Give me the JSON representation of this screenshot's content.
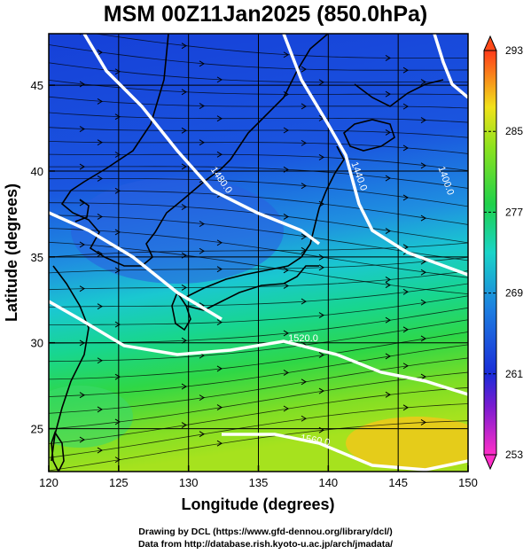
{
  "title": "MSM 00Z11Jan2025 (850.0hPa)",
  "map": {
    "lon_range": [
      120,
      150
    ],
    "lat_range": [
      22.5,
      48
    ],
    "x_ticks": [
      120,
      125,
      130,
      135,
      140,
      145,
      150
    ],
    "y_ticks": [
      25,
      30,
      35,
      40,
      45
    ],
    "xlabel": "Longitude (degrees)",
    "ylabel": "Latitude  (degrees)"
  },
  "colorbar": {
    "ticks": [
      253,
      261,
      269,
      277,
      285,
      293
    ],
    "min": 253,
    "max": 293
  },
  "contours": [
    {
      "label": "1480.0"
    },
    {
      "label": "1440.0"
    },
    {
      "label": "1400.0"
    },
    {
      "label": "1520.0"
    },
    {
      "label": "1560.0"
    }
  ],
  "credits": {
    "line1": "Drawing by DCL (https://www.gfd-dennou.org/library/dcl/)",
    "line2": "Data from http://database.rish.kyoto-u.ac.jp/arch/jmadata/"
  }
}
